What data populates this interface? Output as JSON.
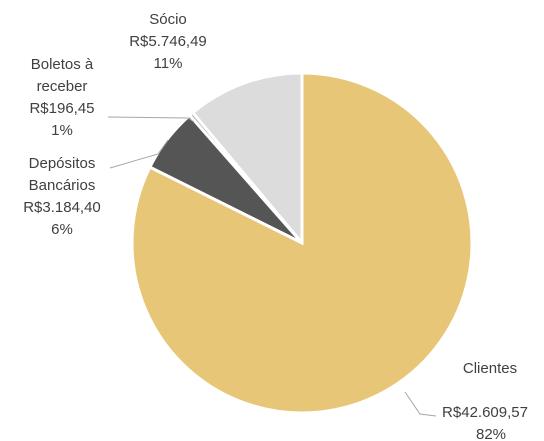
{
  "chart_data": {
    "type": "pie",
    "categories": [
      "Clientes",
      "Depósitos Bancários",
      "Boletos à receber",
      "Sócio"
    ],
    "values": [
      42609.57,
      3184.4,
      196.45,
      5746.49
    ],
    "value_labels": [
      "R$42.609,57",
      "R$3.184,40",
      "R$196,45",
      "R$5.746,49"
    ],
    "percents": [
      82,
      6,
      1,
      11
    ],
    "percent_labels": [
      "82%",
      "6%",
      "1%",
      "11%"
    ],
    "colors": [
      "#e8c677",
      "#555555",
      "#a5a5a5",
      "#dcdcdc"
    ]
  }
}
